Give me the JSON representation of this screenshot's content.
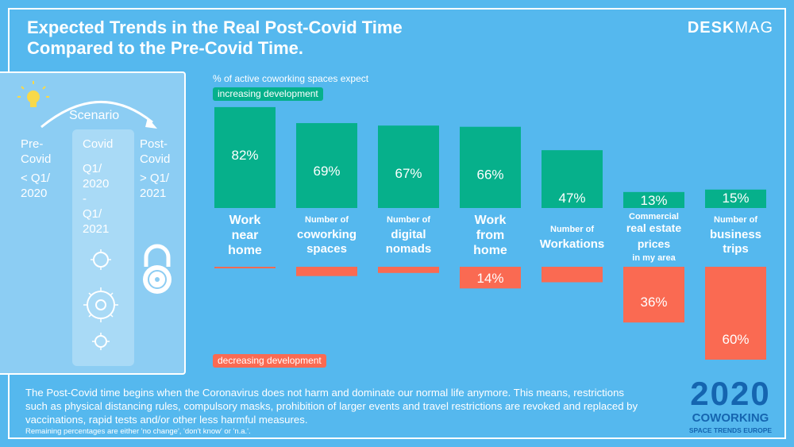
{
  "title_line1": "Expected Trends in the Real Post-Covid Time",
  "title_line2": "Compared to the Pre-Covid Time.",
  "brand": {
    "bold": "DESK",
    "light": "MAG"
  },
  "scenario": {
    "label": "Scenario",
    "pre": [
      "Pre-",
      "Covid",
      "< Q1/",
      "2020"
    ],
    "covid": [
      "Covid",
      "Q1/",
      "2020",
      "-",
      "Q1/",
      "2021"
    ],
    "post": [
      "Post-",
      "Covid",
      "> Q1/",
      "2021"
    ]
  },
  "chart_data": {
    "type": "bar",
    "title": "% of active coworking spaces expect",
    "legend_up": "increasing development",
    "legend_down": "decreasing development",
    "categories": [
      {
        "small": "",
        "big": "Work near home"
      },
      {
        "small": "Number of",
        "big": "coworking spaces"
      },
      {
        "small": "Number of",
        "big": "digital nomads"
      },
      {
        "small": "",
        "big": "Work from home"
      },
      {
        "small": "Number of",
        "big": "Workations"
      },
      {
        "small": "Commercial",
        "big": "real estate prices",
        "after": "in my area"
      },
      {
        "small": "Number of",
        "big": "business trips"
      }
    ],
    "series": [
      {
        "name": "increasing development",
        "values": [
          82,
          69,
          67,
          66,
          47,
          13,
          15
        ],
        "labels": [
          "82%",
          "69%",
          "67%",
          "66%",
          "47%",
          "13%",
          "15%"
        ]
      },
      {
        "name": "decreasing development",
        "values": [
          1,
          6,
          4,
          14,
          10,
          36,
          60
        ],
        "labels": [
          "",
          "",
          "",
          "14%",
          "",
          "36%",
          "60%"
        ]
      }
    ],
    "colors": {
      "increase": "#06b08b",
      "decrease": "#fa6a52"
    }
  },
  "footer": "The Post-Covid time begins when the Coronavirus does not harm and dominate our normal life anymore. This means, restrictions such as physical distancing rules, compulsory masks, prohibition of larger events and travel restrictions are revoked and replaced by vaccinations, rapid tests and/or other less harmful measures.",
  "footnote": "Remaining percentages are either 'no change', 'don't know' or 'n.a.'.",
  "logo": {
    "year": "2020",
    "name": "COWORKING",
    "sub": "SPACE TRENDS EUROPE"
  }
}
